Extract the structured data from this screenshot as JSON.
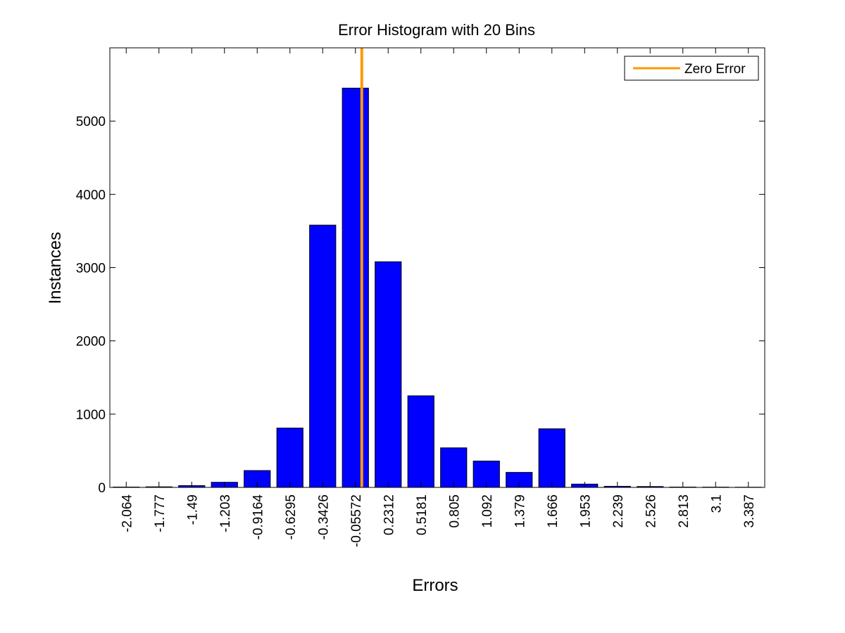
{
  "chart_data": {
    "type": "bar",
    "title": "Error Histogram with 20 Bins",
    "xlabel": "Errors",
    "ylabel": "Instances",
    "categories": [
      "-2.064",
      "-1.777",
      "-1.49",
      "-1.203",
      "-0.9164",
      "-0.6295",
      "-0.3426",
      "-0.05572",
      "0.2312",
      "0.5181",
      "0.805",
      "1.092",
      "1.379",
      "1.666",
      "1.953",
      "2.239",
      "2.526",
      "2.813",
      "3.1",
      "3.387"
    ],
    "values": [
      5,
      8,
      25,
      70,
      230,
      810,
      3580,
      5450,
      3080,
      1250,
      540,
      360,
      205,
      800,
      45,
      15,
      12,
      5,
      4,
      3
    ],
    "ylim": [
      0,
      6000
    ],
    "yticks": [
      0,
      1000,
      2000,
      3000,
      4000,
      5000
    ],
    "zero_error_position": 0,
    "grid": false,
    "legend": {
      "placement": "top-right",
      "entries": [
        {
          "name": "Zero Error",
          "color": "#ff9900"
        }
      ]
    },
    "colors": {
      "bar_fill": "#0000ff",
      "bar_edge": "#000000",
      "zero_line": "#ff9900"
    }
  }
}
